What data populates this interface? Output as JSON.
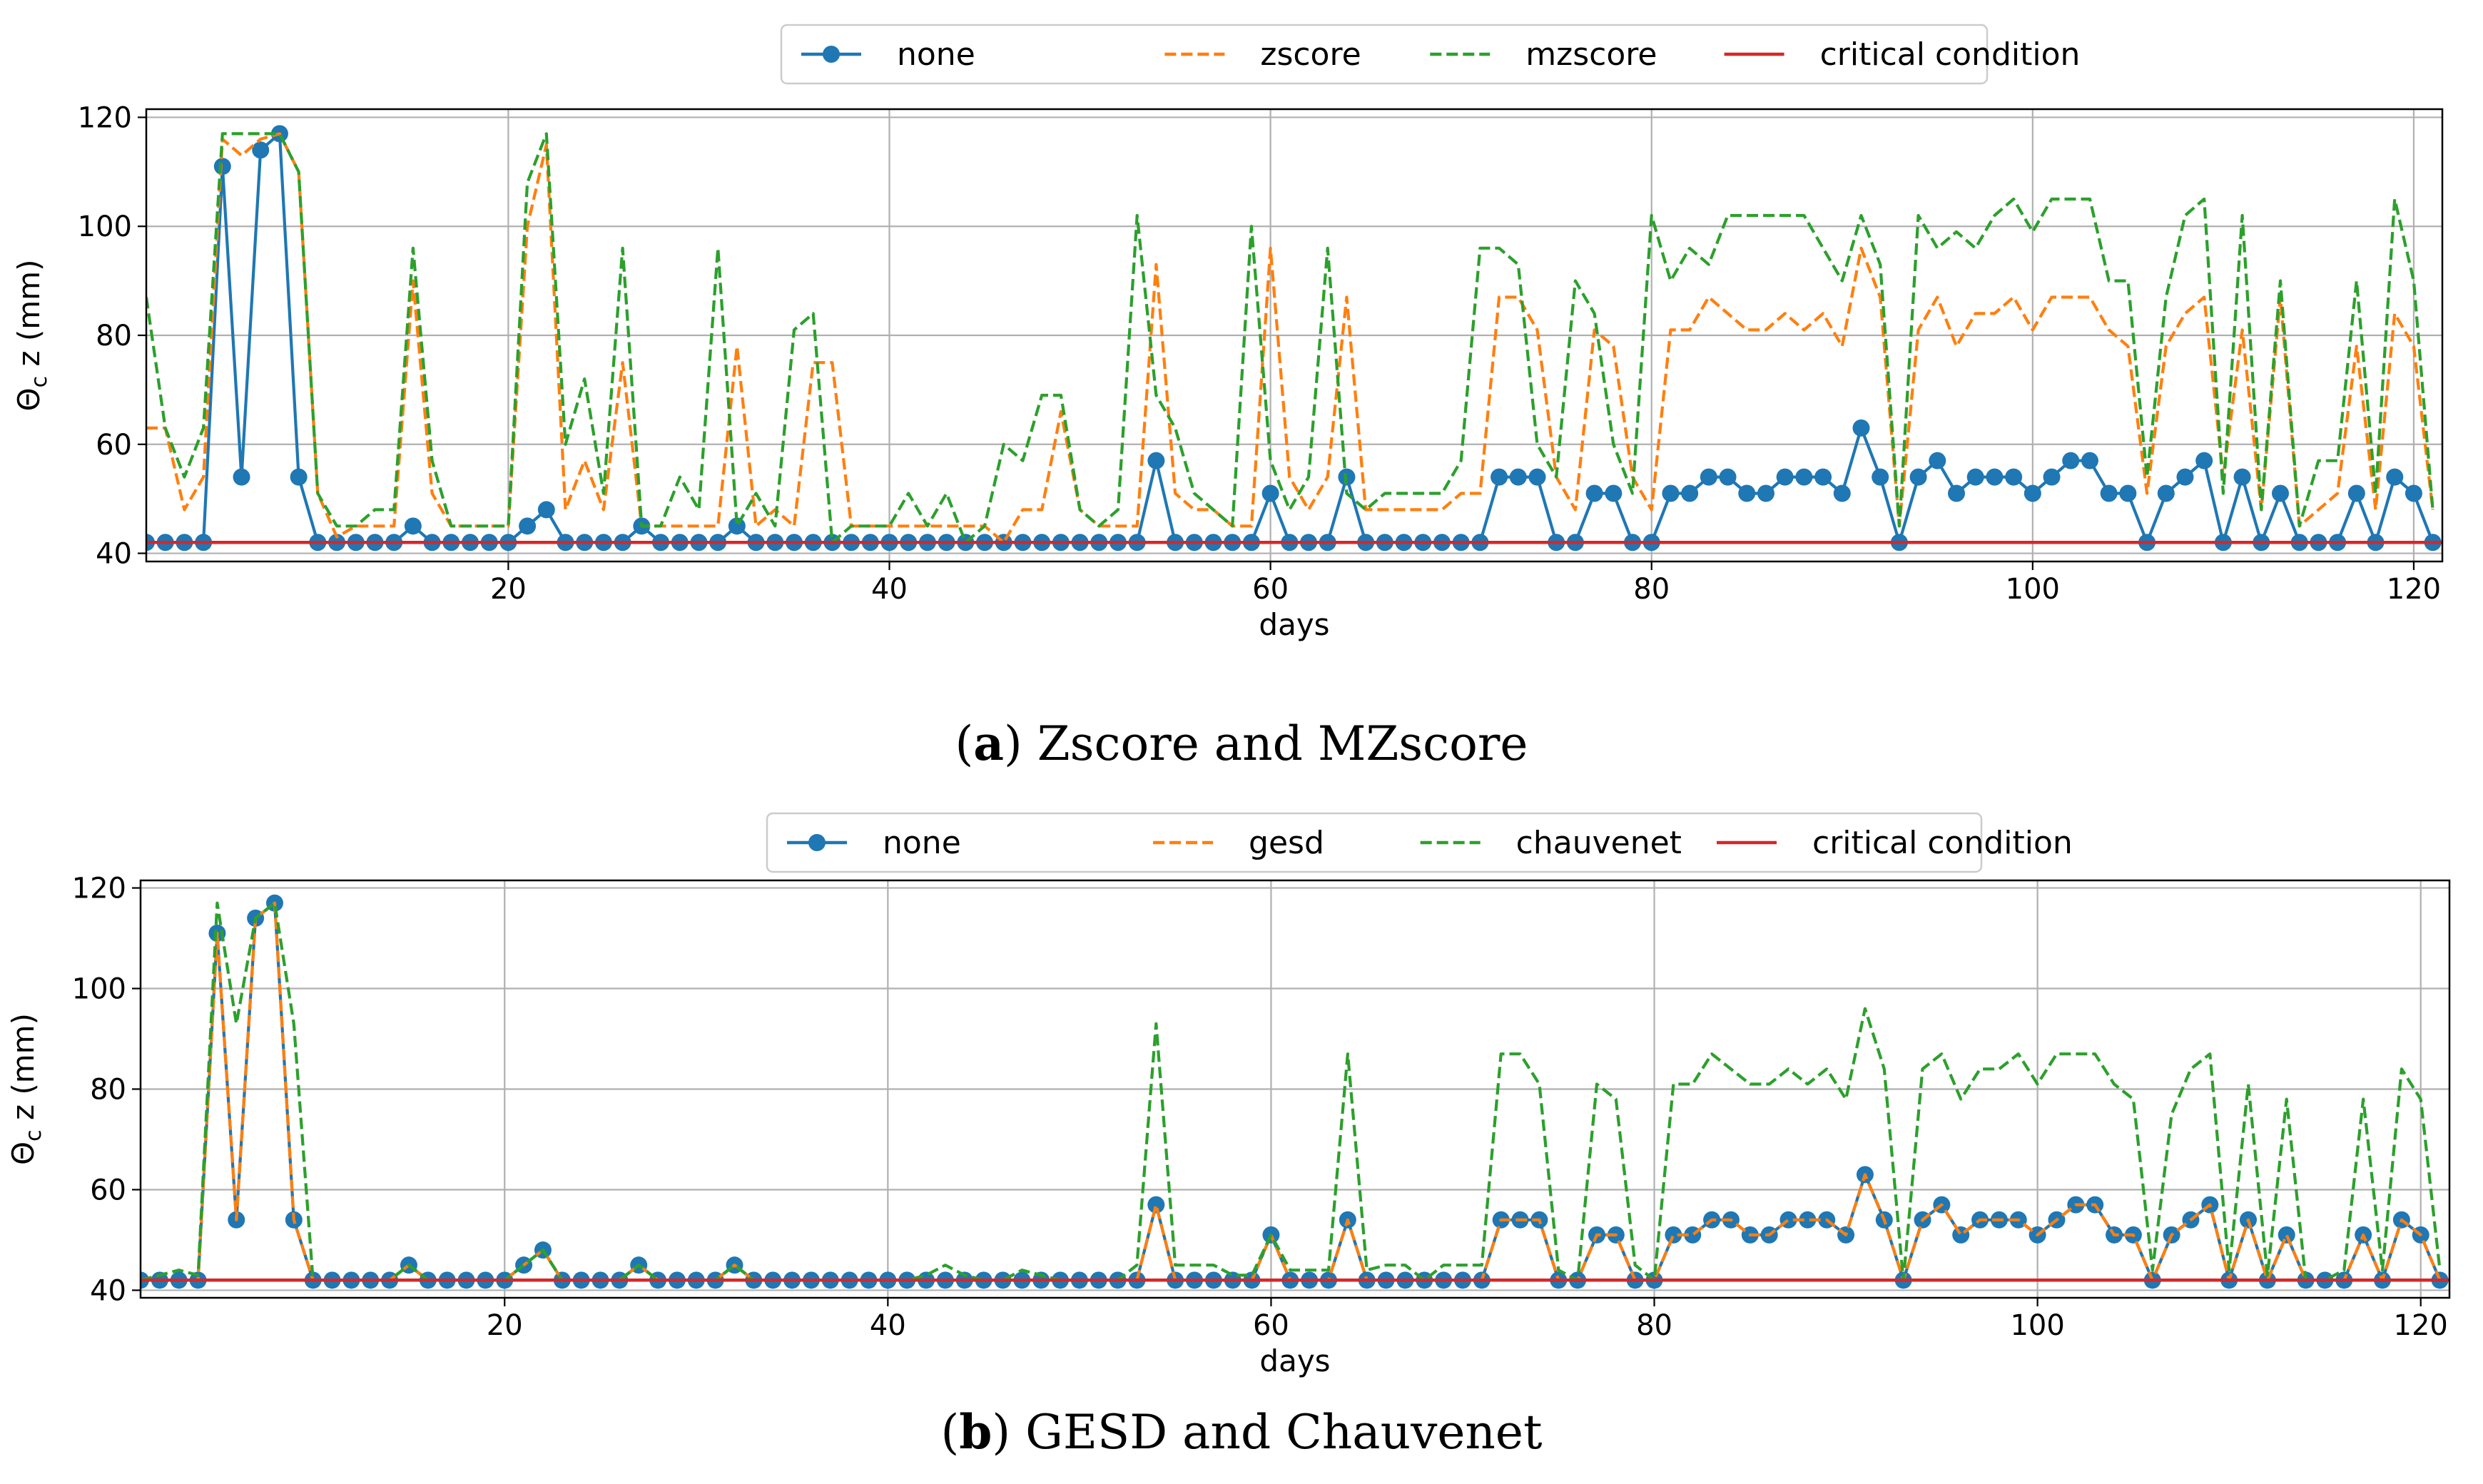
{
  "figure": {
    "captions": [
      {
        "letter": "a",
        "text": "Zscore and MZscore"
      },
      {
        "letter": "b",
        "text": "GESD and Chauvenet"
      }
    ]
  },
  "colors": {
    "none": "#1f77b4",
    "orange": "#ff7f0e",
    "green": "#2ca02c",
    "critical": "#d62728",
    "grid": "#b0b0b0"
  },
  "chart_data": [
    {
      "type": "line",
      "id": "a",
      "xlabel": "days",
      "ylabel": "Θ_c z (mm)",
      "xlim": [
        1,
        121.5
      ],
      "ylim": [
        38.5,
        121.5
      ],
      "xticks": [
        20,
        40,
        60,
        80,
        100,
        120
      ],
      "yticks": [
        40,
        60,
        80,
        100,
        120
      ],
      "grid": true,
      "legend_position": "top-center-outside",
      "x": [
        1,
        2,
        3,
        4,
        5,
        6,
        7,
        8,
        9,
        10,
        11,
        12,
        13,
        14,
        15,
        16,
        17,
        18,
        19,
        20,
        21,
        22,
        23,
        24,
        25,
        26,
        27,
        28,
        29,
        30,
        31,
        32,
        33,
        34,
        35,
        36,
        37,
        38,
        39,
        40,
        41,
        42,
        43,
        44,
        45,
        46,
        47,
        48,
        49,
        50,
        51,
        52,
        53,
        54,
        55,
        56,
        57,
        58,
        59,
        60,
        61,
        62,
        63,
        64,
        65,
        66,
        67,
        68,
        69,
        70,
        71,
        72,
        73,
        74,
        75,
        76,
        77,
        78,
        79,
        80,
        81,
        82,
        83,
        84,
        85,
        86,
        87,
        88,
        89,
        90,
        91,
        92,
        93,
        94,
        95,
        96,
        97,
        98,
        99,
        100,
        101,
        102,
        103,
        104,
        105,
        106,
        107,
        108,
        109,
        110,
        111,
        112,
        113,
        114,
        115,
        116,
        117,
        118,
        119,
        120,
        121
      ],
      "series": [
        {
          "name": "none",
          "style": "solid-marker",
          "values": [
            42,
            42,
            42,
            42,
            111,
            54,
            114,
            117,
            54,
            42,
            42,
            42,
            42,
            42,
            45,
            42,
            42,
            42,
            42,
            42,
            45,
            48,
            42,
            42,
            42,
            42,
            45,
            42,
            42,
            42,
            42,
            45,
            42,
            42,
            42,
            42,
            42,
            42,
            42,
            42,
            42,
            42,
            42,
            42,
            42,
            42,
            42,
            42,
            42,
            42,
            42,
            42,
            42,
            57,
            42,
            42,
            42,
            42,
            42,
            51,
            42,
            42,
            42,
            54,
            42,
            42,
            42,
            42,
            42,
            42,
            42,
            54,
            54,
            54,
            42,
            42,
            51,
            51,
            42,
            42,
            51,
            51,
            54,
            54,
            51,
            51,
            54,
            54,
            54,
            51,
            63,
            54,
            42,
            54,
            57,
            51,
            54,
            54,
            54,
            51,
            54,
            57,
            57,
            51,
            51,
            42,
            51,
            54,
            57,
            42,
            54,
            42,
            51,
            42,
            42,
            42,
            51,
            42,
            54,
            51,
            42
          ]
        },
        {
          "name": "zscore",
          "style": "dashed",
          "values": [
            63,
            63,
            48,
            54,
            116,
            113,
            116,
            117,
            110,
            51,
            43,
            45,
            45,
            45,
            90,
            51,
            45,
            45,
            45,
            45,
            100,
            115,
            48,
            57,
            48,
            75,
            45,
            45,
            45,
            45,
            45,
            78,
            45,
            48,
            45,
            75,
            75,
            45,
            45,
            45,
            45,
            45,
            45,
            45,
            45,
            42,
            48,
            48,
            66,
            48,
            45,
            45,
            45,
            93,
            51,
            48,
            48,
            45,
            45,
            96,
            54,
            48,
            54,
            87,
            48,
            48,
            48,
            48,
            48,
            51,
            51,
            87,
            87,
            81,
            54,
            48,
            81,
            78,
            54,
            48,
            81,
            81,
            87,
            84,
            81,
            81,
            84,
            81,
            84,
            78,
            96,
            87,
            45,
            81,
            87,
            78,
            84,
            84,
            87,
            81,
            87,
            87,
            87,
            81,
            78,
            51,
            78,
            84,
            87,
            54,
            81,
            48,
            87,
            45,
            48,
            51,
            78,
            48,
            84,
            78,
            48
          ]
        },
        {
          "name": "mzscore",
          "style": "dashed",
          "values": [
            87,
            63,
            54,
            63,
            117,
            117,
            117,
            117,
            110,
            51,
            45,
            45,
            48,
            48,
            96,
            57,
            45,
            45,
            45,
            45,
            108,
            117,
            60,
            72,
            51,
            96,
            45,
            45,
            54,
            48,
            96,
            45,
            51,
            45,
            81,
            84,
            42,
            45,
            45,
            45,
            51,
            45,
            51,
            42,
            45,
            60,
            57,
            69,
            69,
            48,
            45,
            48,
            102,
            69,
            63,
            51,
            48,
            45,
            100,
            57,
            48,
            54,
            96,
            51,
            48,
            51,
            51,
            51,
            51,
            57,
            96,
            96,
            93,
            60,
            54,
            90,
            84,
            60,
            51,
            102,
            90,
            96,
            93,
            102,
            102,
            102,
            102,
            102,
            96,
            90,
            102,
            93,
            45,
            102,
            96,
            99,
            96,
            102,
            105,
            99,
            105,
            105,
            105,
            90,
            90,
            54,
            87,
            102,
            105,
            51,
            102,
            48,
            90,
            45,
            57,
            57,
            90,
            51,
            105,
            90,
            48
          ]
        },
        {
          "name": "critical condition",
          "style": "solid",
          "values": [
            42,
            42
          ],
          "x": [
            1,
            121.5
          ]
        }
      ]
    },
    {
      "type": "line",
      "id": "b",
      "xlabel": "days",
      "ylabel": "Θ_c z (mm)",
      "xlim": [
        1,
        121.5
      ],
      "ylim": [
        38.5,
        121.5
      ],
      "xticks": [
        20,
        40,
        60,
        80,
        100,
        120
      ],
      "yticks": [
        40,
        60,
        80,
        100,
        120
      ],
      "grid": true,
      "legend_position": "top-center-outside",
      "x": [
        1,
        2,
        3,
        4,
        5,
        6,
        7,
        8,
        9,
        10,
        11,
        12,
        13,
        14,
        15,
        16,
        17,
        18,
        19,
        20,
        21,
        22,
        23,
        24,
        25,
        26,
        27,
        28,
        29,
        30,
        31,
        32,
        33,
        34,
        35,
        36,
        37,
        38,
        39,
        40,
        41,
        42,
        43,
        44,
        45,
        46,
        47,
        48,
        49,
        50,
        51,
        52,
        53,
        54,
        55,
        56,
        57,
        58,
        59,
        60,
        61,
        62,
        63,
        64,
        65,
        66,
        67,
        68,
        69,
        70,
        71,
        72,
        73,
        74,
        75,
        76,
        77,
        78,
        79,
        80,
        81,
        82,
        83,
        84,
        85,
        86,
        87,
        88,
        89,
        90,
        91,
        92,
        93,
        94,
        95,
        96,
        97,
        98,
        99,
        100,
        101,
        102,
        103,
        104,
        105,
        106,
        107,
        108,
        109,
        110,
        111,
        112,
        113,
        114,
        115,
        116,
        117,
        118,
        119,
        120,
        121
      ],
      "series": [
        {
          "name": "none",
          "style": "solid-marker",
          "values": [
            42,
            42,
            42,
            42,
            111,
            54,
            114,
            117,
            54,
            42,
            42,
            42,
            42,
            42,
            45,
            42,
            42,
            42,
            42,
            42,
            45,
            48,
            42,
            42,
            42,
            42,
            45,
            42,
            42,
            42,
            42,
            45,
            42,
            42,
            42,
            42,
            42,
            42,
            42,
            42,
            42,
            42,
            42,
            42,
            42,
            42,
            42,
            42,
            42,
            42,
            42,
            42,
            42,
            57,
            42,
            42,
            42,
            42,
            42,
            51,
            42,
            42,
            42,
            54,
            42,
            42,
            42,
            42,
            42,
            42,
            42,
            54,
            54,
            54,
            42,
            42,
            51,
            51,
            42,
            42,
            51,
            51,
            54,
            54,
            51,
            51,
            54,
            54,
            54,
            51,
            63,
            54,
            42,
            54,
            57,
            51,
            54,
            54,
            54,
            51,
            54,
            57,
            57,
            51,
            51,
            42,
            51,
            54,
            57,
            42,
            54,
            42,
            51,
            42,
            42,
            42,
            51,
            42,
            54,
            51,
            42
          ]
        },
        {
          "name": "gesd",
          "style": "dashed",
          "values": [
            42,
            42,
            42,
            42,
            111,
            54,
            114,
            117,
            54,
            42,
            42,
            42,
            42,
            42,
            45,
            42,
            42,
            42,
            42,
            42,
            45,
            48,
            42,
            42,
            42,
            42,
            45,
            42,
            42,
            42,
            42,
            45,
            42,
            42,
            42,
            42,
            42,
            42,
            42,
            42,
            42,
            42,
            42,
            42,
            42,
            42,
            42,
            42,
            42,
            42,
            42,
            42,
            42,
            57,
            42,
            42,
            42,
            42,
            42,
            51,
            42,
            42,
            42,
            54,
            42,
            42,
            42,
            42,
            42,
            42,
            42,
            54,
            54,
            54,
            42,
            42,
            51,
            51,
            42,
            42,
            51,
            51,
            54,
            54,
            51,
            51,
            54,
            54,
            54,
            51,
            63,
            54,
            42,
            54,
            57,
            51,
            54,
            54,
            54,
            51,
            54,
            57,
            57,
            51,
            51,
            42,
            51,
            54,
            57,
            42,
            54,
            42,
            51,
            42,
            42,
            42,
            51,
            42,
            54,
            51,
            42
          ]
        },
        {
          "name": "chauvenet",
          "style": "dashed",
          "values": [
            42,
            43,
            44,
            43,
            117,
            93,
            114,
            117,
            93,
            42,
            42,
            42,
            42,
            42,
            45,
            42,
            42,
            42,
            42,
            42,
            45,
            48,
            42,
            42,
            42,
            42,
            45,
            42,
            42,
            42,
            42,
            45,
            42,
            42,
            42,
            42,
            42,
            42,
            42,
            42,
            42,
            43,
            45,
            43,
            42,
            42,
            44,
            43,
            42,
            42,
            42,
            42,
            45,
            93,
            45,
            45,
            45,
            43,
            43,
            51,
            44,
            44,
            44,
            87,
            44,
            45,
            45,
            42,
            45,
            45,
            45,
            87,
            87,
            81,
            44,
            42,
            81,
            78,
            45,
            42,
            81,
            81,
            87,
            84,
            81,
            81,
            84,
            81,
            84,
            78,
            96,
            84,
            42,
            84,
            87,
            78,
            84,
            84,
            87,
            81,
            87,
            87,
            87,
            81,
            78,
            44,
            75,
            84,
            87,
            44,
            81,
            43,
            78,
            42,
            42,
            44,
            78,
            44,
            84,
            78,
            44
          ]
        },
        {
          "name": "critical condition",
          "style": "solid",
          "values": [
            42,
            42
          ],
          "x": [
            1,
            121.5
          ]
        }
      ]
    }
  ]
}
